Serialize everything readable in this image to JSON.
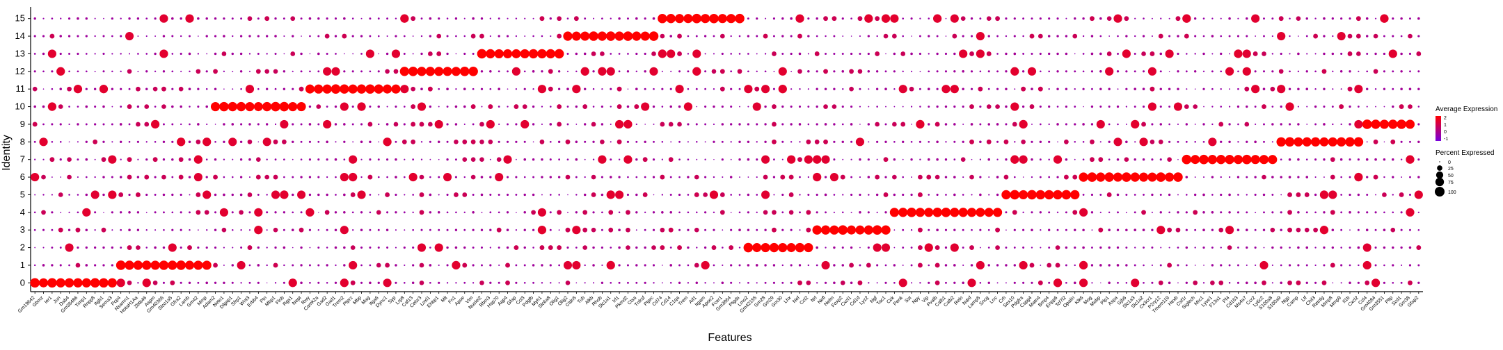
{
  "chart_data": {
    "type": "dotplot",
    "xlabel": "Features",
    "ylabel": "Identity",
    "clusters": [
      "0",
      "1",
      "2",
      "3",
      "4",
      "5",
      "6",
      "7",
      "8",
      "9",
      "10",
      "11",
      "12",
      "13",
      "14",
      "15"
    ],
    "features": [
      "Gm19642",
      "Gbmz",
      "Ier1",
      "Jun",
      "Dab4",
      "Gm38486",
      "Timp1",
      "Rnpp8",
      "Itgb1",
      "Sema3",
      "Pcp4",
      "Nsamn1",
      "HotaH1Aa",
      "Zbtb46",
      "Aspm",
      "Gm40366",
      "Slco1a5",
      "Gfra2",
      "Lamb",
      "Gm42",
      "Mmp",
      "Adam2",
      "Neto1",
      "Dlgap1",
      "Sfrp1",
      "Wnt3",
      "Erbb4",
      "Ptn",
      "Mbp1",
      "Flnb",
      "Rgs1",
      "Nept",
      "Rwy",
      "Camk2a",
      "Gad2",
      "Gad1",
      "Trem2",
      "Ptprz",
      "Mbp",
      "Mag",
      "Itga6",
      "Dync1",
      "Syp",
      "Lrp8",
      "Caf13",
      "Celsr3",
      "Loxl1",
      "Ehbp1",
      "Mlt",
      "Fn1",
      "Apoe",
      "Vim",
      "Nuclei2",
      "Rbm3",
      "Hsp70",
      "Aqp4",
      "Gfap",
      "Ccl3",
      "Pdgfb",
      "Myh1",
      "Slc6a8",
      "Olig1",
      "Olig2",
      "Cldn5",
      "Tub",
      "Alkb",
      "Rhob",
      "Slc1a1",
      "Irf1",
      "Pkmd2",
      "Ctsa",
      "Tnfrsf",
      "Ptprc",
      "Cd74",
      "Cd14",
      "C1qa",
      "Trem",
      "Aif1",
      "Itgam",
      "Apoe2",
      "Fcer1",
      "Gm3864",
      "Ptgds",
      "Lmo2",
      "Gm42155",
      "Gm28",
      "Gm29",
      "Gm30",
      "Lhx",
      "Nef",
      "Ccl2",
      "Nrl",
      "Nefl",
      "Nefm",
      "Foxp2",
      "Cxcl1",
      "Cd1d",
      "Lyz2",
      "Ngf",
      "Tac1",
      "Cck",
      "Penk",
      "Sst",
      "Npy",
      "Vip",
      "Pvalb",
      "Calb1",
      "Calb2",
      "Reln",
      "Ndnf",
      "Lamp5",
      "Sncg",
      "Lrrc",
      "Crh",
      "Sox10",
      "Pdgfra",
      "Cspg4",
      "Matn4",
      "Bmp4",
      "Enpp6",
      "Tcf7l2",
      "Opalin",
      "Klk6",
      "Mog",
      "Mobp",
      "Plp1",
      "Aspa",
      "Gjb6",
      "Slc1a3",
      "Slc1a2",
      "Cx3cr1",
      "P2ry12",
      "Tmem119",
      "Hexb",
      "Csf1r",
      "Siglech",
      "Mrc1",
      "Lyve1",
      "F13a1",
      "Pf4",
      "Cd163",
      "Ms4a7",
      "Ccr2",
      "Ly6c2",
      "S100a8",
      "S100a9",
      "Ngp",
      "Camp",
      "Ltf",
      "Chil3",
      "Retnlg",
      "Mmp8",
      "Mmp9",
      "Il1b",
      "Cxcl2",
      "Ccl4",
      "Gm4084",
      "Gm3551",
      "Pltp",
      "Scd1",
      "Gm38",
      "Gfap2"
    ],
    "color_scale": {
      "title": "Average Expression",
      "min": -1,
      "max": 2,
      "low_color": "#7700dd",
      "high_color": "#ff0000",
      "ticks": [
        "2",
        "1",
        "0",
        "-1"
      ]
    },
    "size_scale": {
      "title": "Percent Expressed",
      "ticks": [
        "0",
        "25",
        "50",
        "75",
        "100"
      ]
    },
    "markers": [
      {
        "cluster": "0",
        "from": 0,
        "to": 9
      },
      {
        "cluster": "1",
        "from": 10,
        "to": 20
      },
      {
        "cluster": "2",
        "from": 83,
        "to": 90
      },
      {
        "cluster": "3",
        "from": 91,
        "to": 99
      },
      {
        "cluster": "4",
        "from": 100,
        "to": 112
      },
      {
        "cluster": "5",
        "from": 113,
        "to": 121
      },
      {
        "cluster": "6",
        "from": 122,
        "to": 133
      },
      {
        "cluster": "7",
        "from": 134,
        "to": 144
      },
      {
        "cluster": "8",
        "from": 145,
        "to": 154
      },
      {
        "cluster": "9",
        "from": 155,
        "to": 160
      },
      {
        "cluster": "10",
        "from": 21,
        "to": 31
      },
      {
        "cluster": "11",
        "from": 32,
        "to": 42
      },
      {
        "cluster": "12",
        "from": 43,
        "to": 51
      },
      {
        "cluster": "13",
        "from": 52,
        "to": 61
      },
      {
        "cluster": "14",
        "from": 62,
        "to": 72
      },
      {
        "cluster": "15",
        "from": 73,
        "to": 82
      }
    ]
  }
}
